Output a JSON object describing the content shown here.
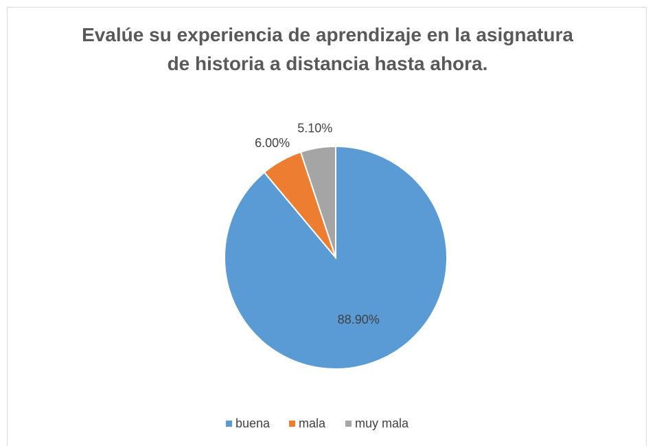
{
  "chart_data": {
    "type": "pie",
    "title": "Evalúe su experiencia de aprendizaje en la asignatura de historia a distancia hasta ahora.",
    "categories": [
      "buena",
      "mala",
      "muy mala"
    ],
    "values": [
      88.9,
      6.0,
      5.1
    ],
    "value_labels": [
      "88.90%",
      "6.00%",
      "5.10%"
    ],
    "colors": [
      "#5b9bd5",
      "#ed7d31",
      "#a5a5a5"
    ],
    "legend": "bottom"
  }
}
